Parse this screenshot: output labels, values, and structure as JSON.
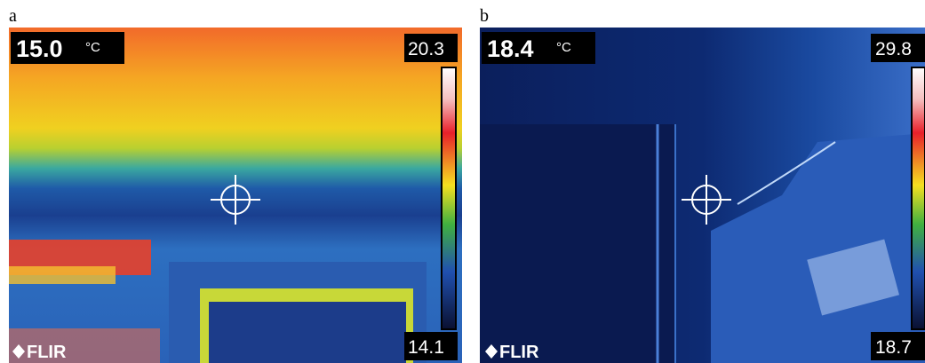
{
  "panels": [
    {
      "label": "a",
      "spot_temperature": "15.0",
      "unit": "°C",
      "scale_max": "20.3",
      "scale_min": "14.1",
      "brand": "FLIR"
    },
    {
      "label": "b",
      "spot_temperature": "18.4",
      "unit": "°C",
      "scale_max": "29.8",
      "scale_min": "18.7",
      "brand": "FLIR"
    }
  ]
}
